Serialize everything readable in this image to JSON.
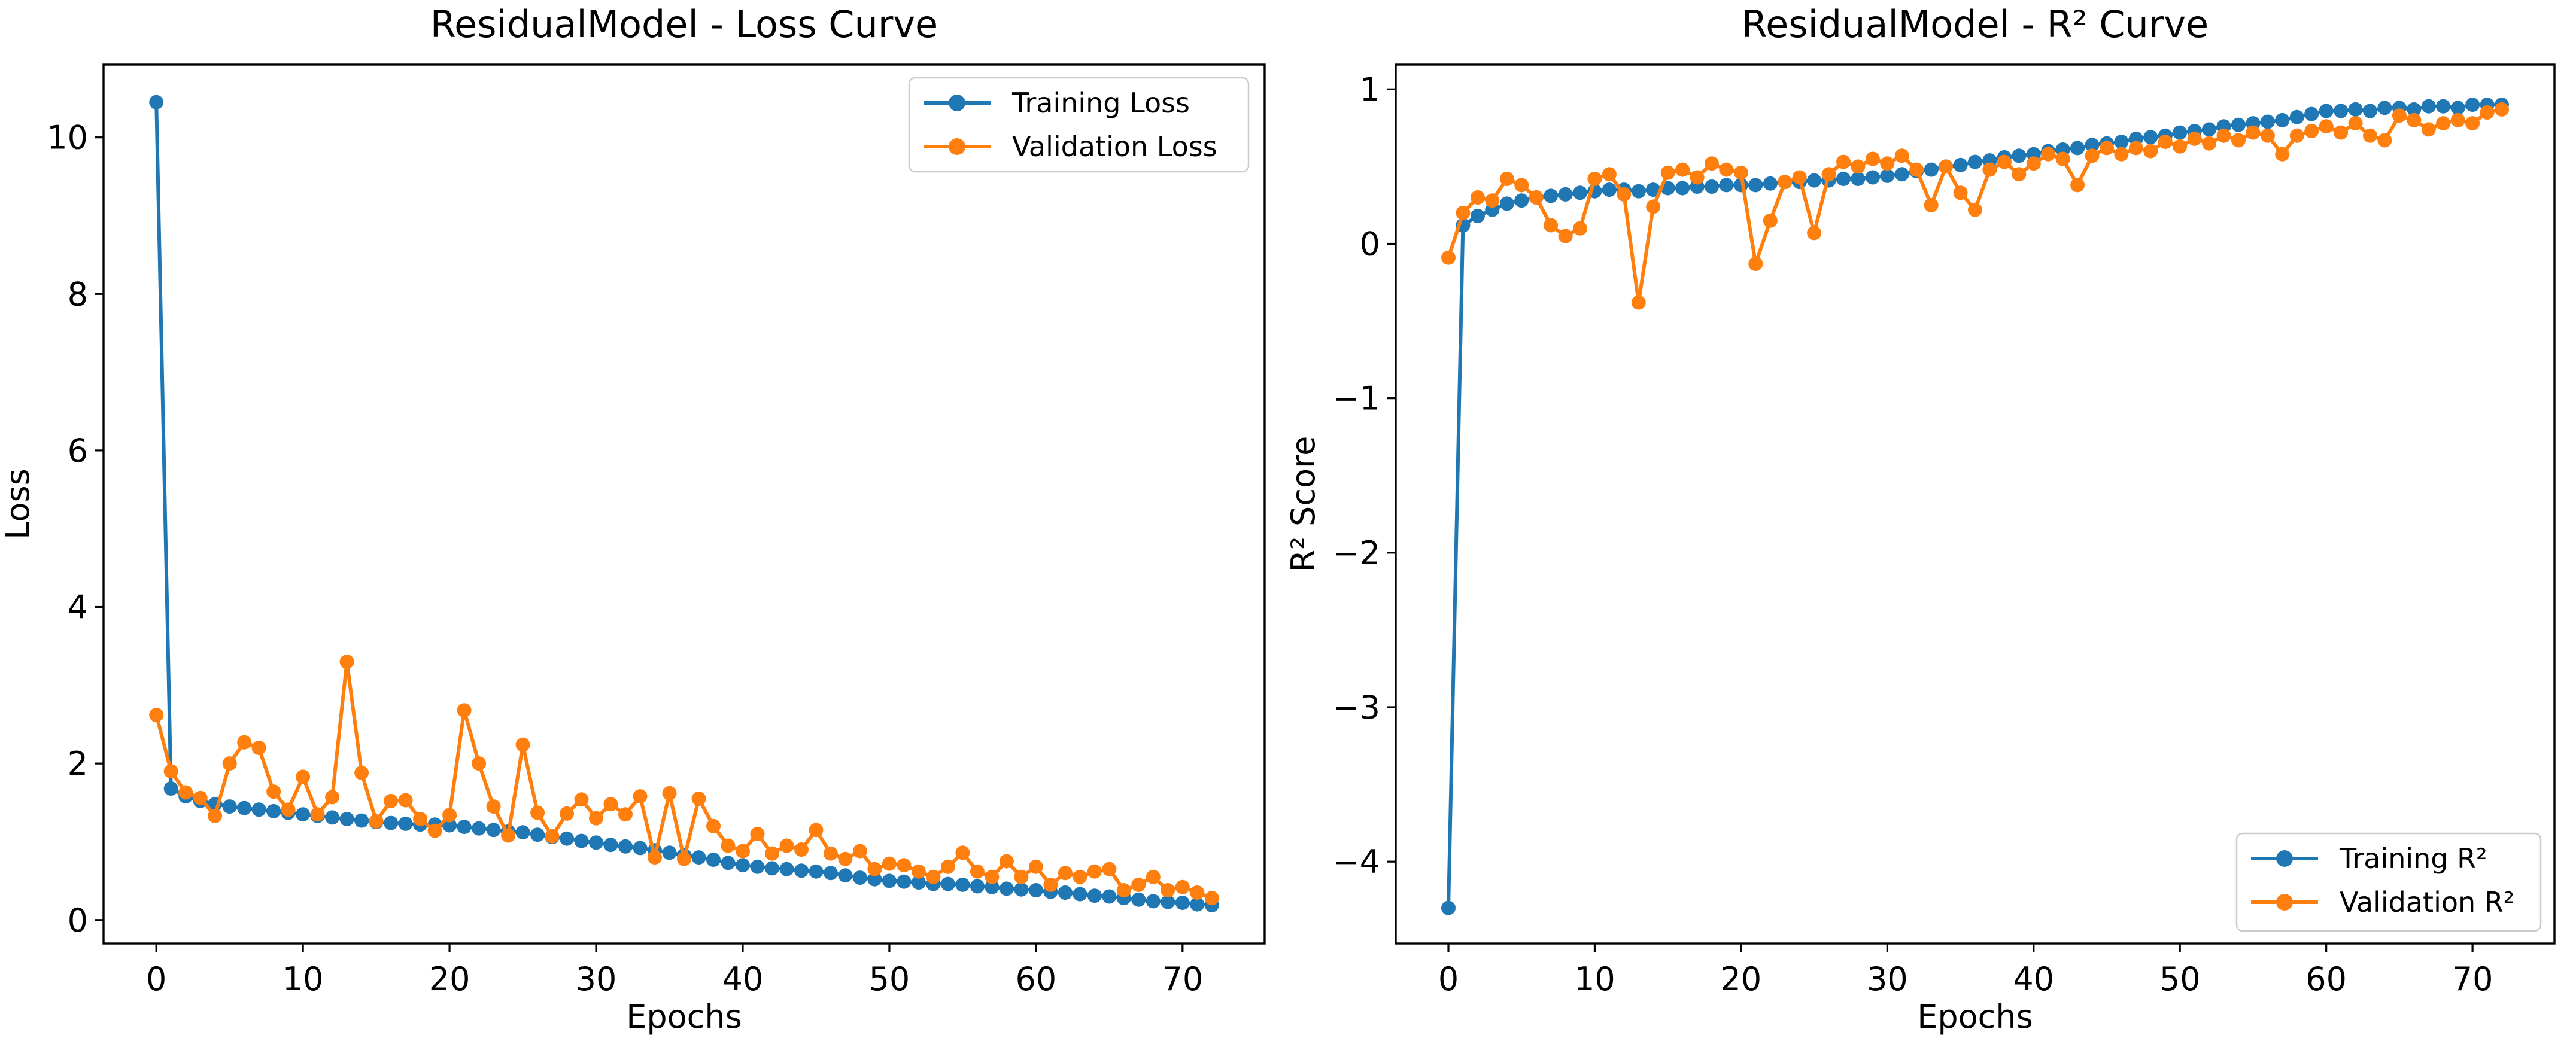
{
  "app": {
    "kind": "matplotlib-style training curves figure",
    "background": "#ffffff"
  },
  "colors": {
    "training": "#1f77b4",
    "validation": "#ff7f0e",
    "spine": "#000000",
    "text": "#000000",
    "legend_border": "#cccccc",
    "legend_bg": "#ffffff"
  },
  "chart_data": [
    {
      "type": "line",
      "title": "ResidualModel - Loss Curve",
      "xlabel": "Epochs",
      "ylabel": "Loss",
      "x_note": "x value = epoch index, 0 through 72",
      "x_tick_labels": [
        "0",
        "10",
        "20",
        "30",
        "40",
        "50",
        "60",
        "70"
      ],
      "x_tick_values": [
        0,
        10,
        20,
        30,
        40,
        50,
        60,
        70
      ],
      "y_tick_labels": [
        "0",
        "2",
        "4",
        "6",
        "8",
        "10"
      ],
      "y_tick_values": [
        0,
        2,
        4,
        6,
        8,
        10
      ],
      "xlim": [
        -3.6,
        75.6
      ],
      "ylim": [
        -0.3,
        10.93
      ],
      "grid": false,
      "legend_position": "upper-right",
      "series": [
        {
          "label": "Training Loss",
          "color_key": "training",
          "marker": "circle",
          "values": [
            10.45,
            1.68,
            1.58,
            1.52,
            1.48,
            1.45,
            1.43,
            1.41,
            1.39,
            1.37,
            1.35,
            1.33,
            1.31,
            1.29,
            1.27,
            1.25,
            1.24,
            1.23,
            1.22,
            1.22,
            1.21,
            1.19,
            1.17,
            1.15,
            1.13,
            1.12,
            1.09,
            1.06,
            1.04,
            1.01,
            0.99,
            0.96,
            0.94,
            0.92,
            0.89,
            0.86,
            0.83,
            0.8,
            0.77,
            0.73,
            0.7,
            0.68,
            0.66,
            0.65,
            0.63,
            0.62,
            0.6,
            0.57,
            0.54,
            0.52,
            0.5,
            0.49,
            0.48,
            0.46,
            0.46,
            0.45,
            0.43,
            0.42,
            0.4,
            0.39,
            0.38,
            0.36,
            0.35,
            0.33,
            0.31,
            0.3,
            0.28,
            0.26,
            0.24,
            0.23,
            0.22,
            0.2,
            0.19
          ]
        },
        {
          "label": "Validation Loss",
          "color_key": "validation",
          "marker": "circle",
          "values": [
            2.62,
            1.9,
            1.63,
            1.56,
            1.33,
            2.0,
            2.27,
            2.2,
            1.64,
            1.41,
            1.83,
            1.35,
            1.57,
            3.3,
            1.88,
            1.26,
            1.52,
            1.53,
            1.29,
            1.14,
            1.34,
            2.68,
            2.0,
            1.45,
            1.08,
            2.24,
            1.37,
            1.07,
            1.36,
            1.54,
            1.3,
            1.48,
            1.35,
            1.58,
            0.8,
            1.62,
            0.78,
            1.55,
            1.2,
            0.95,
            0.88,
            1.1,
            0.85,
            0.95,
            0.9,
            1.15,
            0.85,
            0.78,
            0.88,
            0.65,
            0.72,
            0.7,
            0.62,
            0.55,
            0.68,
            0.86,
            0.62,
            0.55,
            0.75,
            0.55,
            0.68,
            0.45,
            0.6,
            0.55,
            0.62,
            0.65,
            0.38,
            0.45,
            0.55,
            0.38,
            0.42,
            0.35,
            0.28
          ]
        }
      ]
    },
    {
      "type": "line",
      "title": "ResidualModel - R² Curve",
      "xlabel": "Epochs",
      "ylabel": "R² Score",
      "x_note": "x value = epoch index, 0 through 72",
      "x_tick_labels": [
        "0",
        "10",
        "20",
        "30",
        "40",
        "50",
        "60",
        "70"
      ],
      "x_tick_values": [
        0,
        10,
        20,
        30,
        40,
        50,
        60,
        70
      ],
      "y_tick_labels": [
        "1",
        "0",
        "−1",
        "−2",
        "−3",
        "−4"
      ],
      "y_tick_values": [
        1,
        0,
        -1,
        -2,
        -3,
        -4
      ],
      "xlim": [
        -3.6,
        75.6
      ],
      "ylim": [
        -4.53,
        1.16
      ],
      "grid": false,
      "legend_position": "lower-right",
      "series": [
        {
          "label": "Training R²",
          "color_key": "training",
          "marker": "circle",
          "values": [
            -4.3,
            0.12,
            0.18,
            0.22,
            0.26,
            0.28,
            0.3,
            0.31,
            0.32,
            0.33,
            0.34,
            0.35,
            0.35,
            0.34,
            0.35,
            0.36,
            0.36,
            0.37,
            0.37,
            0.38,
            0.38,
            0.38,
            0.39,
            0.4,
            0.4,
            0.41,
            0.41,
            0.42,
            0.42,
            0.43,
            0.44,
            0.45,
            0.47,
            0.48,
            0.5,
            0.51,
            0.53,
            0.54,
            0.56,
            0.57,
            0.58,
            0.6,
            0.61,
            0.62,
            0.64,
            0.65,
            0.66,
            0.68,
            0.69,
            0.7,
            0.72,
            0.73,
            0.74,
            0.76,
            0.77,
            0.78,
            0.79,
            0.8,
            0.82,
            0.84,
            0.86,
            0.86,
            0.87,
            0.86,
            0.88,
            0.88,
            0.87,
            0.89,
            0.89,
            0.88,
            0.9,
            0.9,
            0.9
          ]
        },
        {
          "label": "Validation R²",
          "color_key": "validation",
          "marker": "circle",
          "values": [
            -0.09,
            0.2,
            0.3,
            0.28,
            0.42,
            0.38,
            0.3,
            0.12,
            0.05,
            0.1,
            0.42,
            0.45,
            0.32,
            -0.38,
            0.24,
            0.46,
            0.48,
            0.43,
            0.52,
            0.48,
            0.46,
            -0.13,
            0.15,
            0.4,
            0.43,
            0.07,
            0.45,
            0.53,
            0.5,
            0.55,
            0.52,
            0.57,
            0.48,
            0.25,
            0.5,
            0.33,
            0.22,
            0.48,
            0.53,
            0.45,
            0.52,
            0.58,
            0.55,
            0.38,
            0.57,
            0.62,
            0.58,
            0.62,
            0.6,
            0.66,
            0.63,
            0.68,
            0.65,
            0.7,
            0.67,
            0.72,
            0.7,
            0.58,
            0.7,
            0.73,
            0.76,
            0.72,
            0.78,
            0.7,
            0.67,
            0.83,
            0.8,
            0.74,
            0.78,
            0.8,
            0.78,
            0.85,
            0.87
          ]
        }
      ]
    }
  ]
}
